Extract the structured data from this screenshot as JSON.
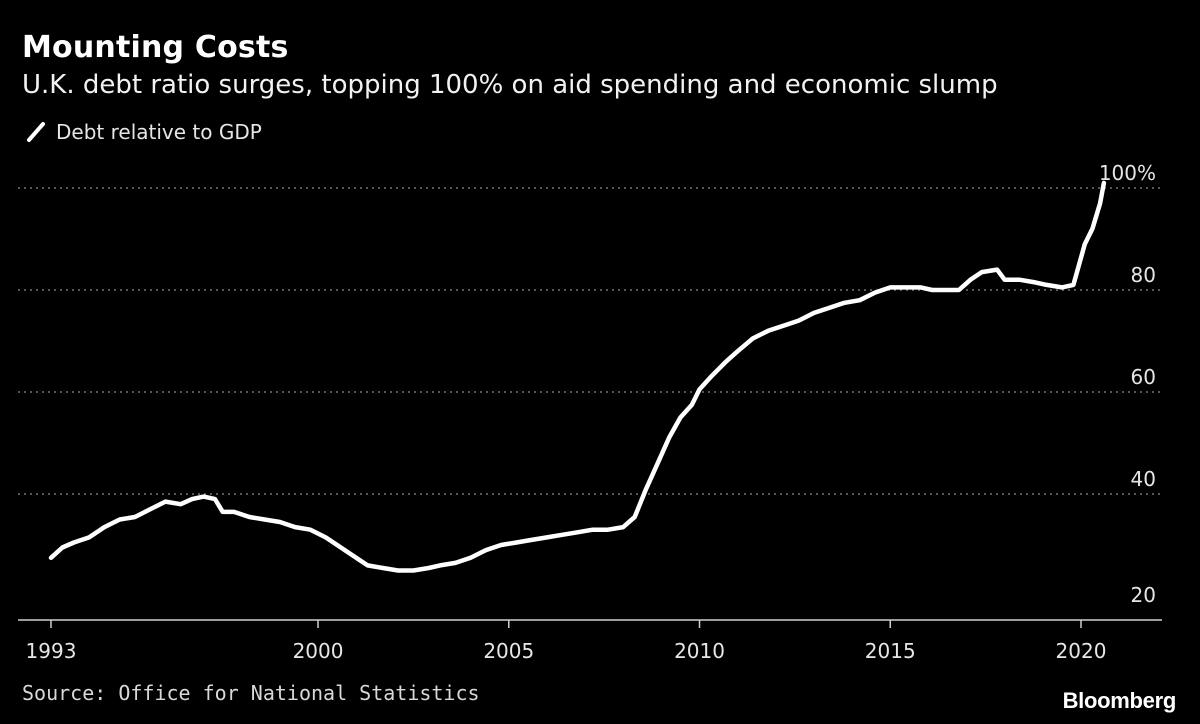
{
  "title": "Mounting Costs",
  "subtitle": "U.K. debt ratio surges, topping 100% on aid spending and economic slump",
  "source": "Source: Office for National Statistics",
  "brand": "Bloomberg",
  "colors": {
    "background": "#000000",
    "line": "#ffffff",
    "grid": "#8a8a8a",
    "text": "#e6e6e6"
  },
  "chart_data": {
    "type": "line",
    "legend_position": "top-left",
    "grid": true,
    "x_range": [
      1993,
      2021.6
    ],
    "ylim": [
      17,
      103
    ],
    "y_ticks": [
      {
        "value": 20,
        "label": "20"
      },
      {
        "value": 40,
        "label": "40"
      },
      {
        "value": 60,
        "label": "60"
      },
      {
        "value": 80,
        "label": "80"
      },
      {
        "value": 100,
        "label": "100%"
      }
    ],
    "x_ticks": [
      {
        "value": 1993,
        "label": "1993"
      },
      {
        "value": 2000,
        "label": "2000"
      },
      {
        "value": 2005,
        "label": "2005"
      },
      {
        "value": 2010,
        "label": "2010"
      },
      {
        "value": 2015,
        "label": "2015"
      },
      {
        "value": 2020,
        "label": "2020"
      }
    ],
    "series": [
      {
        "name": "Debt relative to GDP",
        "points": [
          [
            1993.0,
            27.5
          ],
          [
            1993.3,
            29.5
          ],
          [
            1993.6,
            30.5
          ],
          [
            1994.0,
            31.5
          ],
          [
            1994.4,
            33.5
          ],
          [
            1994.8,
            35.0
          ],
          [
            1995.2,
            35.5
          ],
          [
            1995.6,
            37.0
          ],
          [
            1996.0,
            38.5
          ],
          [
            1996.4,
            38.0
          ],
          [
            1996.7,
            39.0
          ],
          [
            1997.0,
            39.5
          ],
          [
            1997.3,
            39.0
          ],
          [
            1997.5,
            36.5
          ],
          [
            1997.8,
            36.5
          ],
          [
            1998.2,
            35.5
          ],
          [
            1998.6,
            35.0
          ],
          [
            1999.0,
            34.5
          ],
          [
            1999.4,
            33.5
          ],
          [
            1999.8,
            33.0
          ],
          [
            2000.2,
            31.5
          ],
          [
            2000.5,
            30.0
          ],
          [
            2000.9,
            28.0
          ],
          [
            2001.3,
            26.0
          ],
          [
            2001.7,
            25.5
          ],
          [
            2002.1,
            25.0
          ],
          [
            2002.5,
            25.0
          ],
          [
            2002.9,
            25.5
          ],
          [
            2003.2,
            26.0
          ],
          [
            2003.6,
            26.5
          ],
          [
            2004.0,
            27.5
          ],
          [
            2004.4,
            29.0
          ],
          [
            2004.8,
            30.0
          ],
          [
            2005.2,
            30.5
          ],
          [
            2005.6,
            31.0
          ],
          [
            2006.0,
            31.5
          ],
          [
            2006.4,
            32.0
          ],
          [
            2006.8,
            32.5
          ],
          [
            2007.2,
            33.0
          ],
          [
            2007.6,
            33.0
          ],
          [
            2008.0,
            33.5
          ],
          [
            2008.3,
            35.5
          ],
          [
            2008.6,
            41.0
          ],
          [
            2008.9,
            46.0
          ],
          [
            2009.2,
            51.0
          ],
          [
            2009.5,
            55.0
          ],
          [
            2009.8,
            57.5
          ],
          [
            2010.0,
            60.5
          ],
          [
            2010.3,
            63.0
          ],
          [
            2010.7,
            66.0
          ],
          [
            2011.0,
            68.0
          ],
          [
            2011.4,
            70.5
          ],
          [
            2011.8,
            72.0
          ],
          [
            2012.2,
            73.0
          ],
          [
            2012.6,
            74.0
          ],
          [
            2013.0,
            75.5
          ],
          [
            2013.4,
            76.5
          ],
          [
            2013.8,
            77.5
          ],
          [
            2014.2,
            78.0
          ],
          [
            2014.6,
            79.5
          ],
          [
            2015.0,
            80.5
          ],
          [
            2015.4,
            80.5
          ],
          [
            2015.8,
            80.5
          ],
          [
            2016.1,
            80.0
          ],
          [
            2016.5,
            80.0
          ],
          [
            2016.8,
            80.0
          ],
          [
            2017.1,
            82.0
          ],
          [
            2017.4,
            83.5
          ],
          [
            2017.8,
            84.0
          ],
          [
            2018.0,
            82.0
          ],
          [
            2018.4,
            82.0
          ],
          [
            2018.8,
            81.5
          ],
          [
            2019.1,
            81.0
          ],
          [
            2019.5,
            80.5
          ],
          [
            2019.8,
            81.0
          ],
          [
            2020.1,
            89.0
          ],
          [
            2020.3,
            92.0
          ],
          [
            2020.5,
            97.0
          ],
          [
            2020.6,
            101.0
          ]
        ]
      }
    ]
  }
}
